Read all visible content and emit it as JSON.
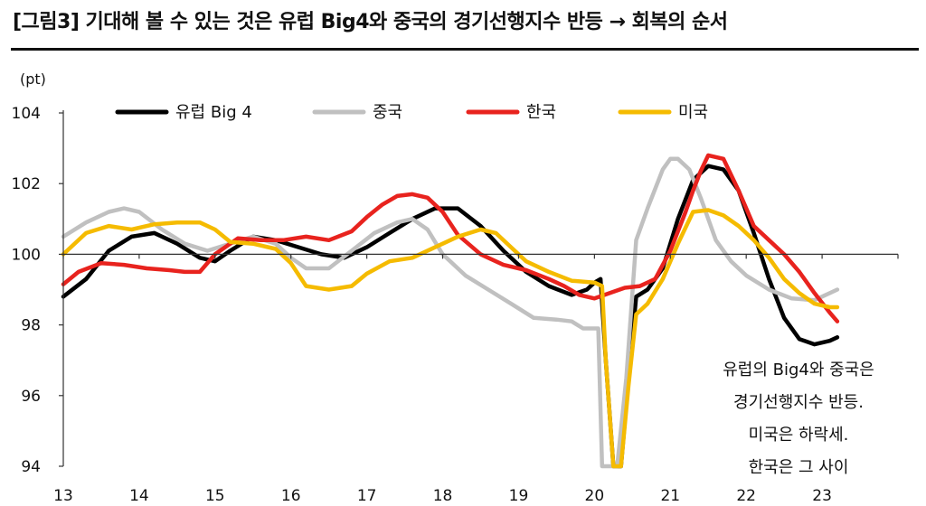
{
  "header": {
    "title": "[그림3] 기대해 볼 수 있는 것은 유럽 Big4와 중국의 경기선행지수 반등 → 회복의 순서"
  },
  "annotation": {
    "lines": [
      "유럽의 Big4와 중국은",
      "경기선행지수 반등.",
      "미국은 하락세.",
      "한국은 그 사이"
    ]
  },
  "chart_data": {
    "type": "line",
    "ylabel": "(pt)",
    "ylim": [
      94,
      104
    ],
    "xlim": [
      13,
      24
    ],
    "yticks": [
      94,
      96,
      98,
      100,
      102,
      104
    ],
    "xticks": [
      "13",
      "14",
      "15",
      "16",
      "17",
      "18",
      "19",
      "20",
      "21",
      "22",
      "23"
    ],
    "grid": false,
    "legend_position": "top",
    "series": [
      {
        "name": "유럽 Big 4",
        "color": "#000000",
        "x": [
          13,
          13.3,
          13.6,
          13.9,
          14.2,
          14.5,
          14.8,
          15.0,
          15.2,
          15.5,
          15.8,
          16.1,
          16.4,
          16.7,
          17.0,
          17.3,
          17.6,
          17.9,
          18.2,
          18.5,
          18.8,
          19.1,
          19.4,
          19.7,
          19.9,
          20.0,
          20.08,
          20.15,
          20.25,
          20.35,
          20.45,
          20.55,
          20.7,
          20.9,
          21.1,
          21.3,
          21.5,
          21.7,
          21.9,
          22.1,
          22.3,
          22.5,
          22.7,
          22.9,
          23.1,
          23.2
        ],
        "values": [
          98.8,
          99.3,
          100.1,
          100.5,
          100.6,
          100.3,
          99.9,
          99.8,
          100.1,
          100.5,
          100.4,
          100.2,
          100.0,
          99.9,
          100.2,
          100.6,
          101.0,
          101.3,
          101.3,
          100.8,
          100.1,
          99.5,
          99.1,
          98.85,
          99.0,
          99.2,
          99.3,
          97.0,
          93.5,
          93.5,
          96.5,
          98.8,
          99.0,
          99.6,
          101.0,
          102.1,
          102.5,
          102.4,
          101.8,
          100.6,
          99.3,
          98.2,
          97.6,
          97.45,
          97.55,
          97.65
        ]
      },
      {
        "name": "중국",
        "color": "#c0c0c0",
        "x": [
          13,
          13.3,
          13.6,
          13.8,
          14.0,
          14.3,
          14.6,
          14.9,
          15.2,
          15.5,
          15.8,
          16.0,
          16.2,
          16.5,
          16.8,
          17.1,
          17.4,
          17.6,
          17.8,
          18.0,
          18.3,
          18.6,
          18.9,
          19.2,
          19.5,
          19.7,
          19.85,
          20.0,
          20.05,
          20.1,
          20.2,
          20.3,
          20.42,
          20.55,
          20.7,
          20.9,
          21.0,
          21.1,
          21.25,
          21.4,
          21.6,
          21.8,
          22.0,
          22.3,
          22.6,
          22.9,
          23.2
        ],
        "values": [
          100.5,
          100.9,
          101.2,
          101.3,
          101.2,
          100.7,
          100.3,
          100.1,
          100.3,
          100.5,
          100.3,
          99.9,
          99.6,
          99.6,
          100.1,
          100.6,
          100.9,
          101.0,
          100.7,
          100.0,
          99.4,
          99.0,
          98.6,
          98.2,
          98.15,
          98.1,
          97.9,
          97.9,
          97.9,
          93.5,
          93.5,
          93.5,
          96.5,
          100.4,
          101.3,
          102.4,
          102.7,
          102.7,
          102.4,
          101.6,
          100.4,
          99.8,
          99.4,
          99.0,
          98.75,
          98.7,
          99.0
        ]
      },
      {
        "name": "한국",
        "color": "#e8231e",
        "x": [
          13,
          13.2,
          13.5,
          13.8,
          14.1,
          14.4,
          14.6,
          14.8,
          15.0,
          15.3,
          15.6,
          15.9,
          16.2,
          16.5,
          16.8,
          17.0,
          17.2,
          17.4,
          17.6,
          17.8,
          18.0,
          18.2,
          18.5,
          18.8,
          19.1,
          19.4,
          19.6,
          19.8,
          20.0,
          20.2,
          20.4,
          20.6,
          20.8,
          21.0,
          21.2,
          21.3,
          21.4,
          21.5,
          21.7,
          21.9,
          22.1,
          22.3,
          22.5,
          22.7,
          22.9,
          23.1,
          23.2
        ],
        "values": [
          99.15,
          99.5,
          99.75,
          99.7,
          99.6,
          99.55,
          99.5,
          99.5,
          100.0,
          100.45,
          100.4,
          100.4,
          100.5,
          100.4,
          100.65,
          101.05,
          101.4,
          101.65,
          101.7,
          101.6,
          101.2,
          100.55,
          100.0,
          99.7,
          99.55,
          99.3,
          99.1,
          98.85,
          98.75,
          98.9,
          99.05,
          99.1,
          99.3,
          100.1,
          101.2,
          101.8,
          102.35,
          102.8,
          102.7,
          101.8,
          100.8,
          100.4,
          100.0,
          99.5,
          98.9,
          98.35,
          98.1
        ]
      },
      {
        "name": "미국",
        "color": "#f5bb00",
        "x": [
          13,
          13.3,
          13.6,
          13.9,
          14.2,
          14.5,
          14.8,
          15.0,
          15.2,
          15.5,
          15.8,
          16.0,
          16.2,
          16.5,
          16.8,
          17.0,
          17.3,
          17.6,
          17.9,
          18.2,
          18.5,
          18.7,
          18.9,
          19.1,
          19.4,
          19.7,
          20.0,
          20.1,
          20.15,
          20.25,
          20.35,
          20.45,
          20.55,
          20.7,
          20.9,
          21.1,
          21.3,
          21.5,
          21.7,
          21.9,
          22.1,
          22.3,
          22.5,
          22.7,
          22.9,
          23.1,
          23.2
        ],
        "values": [
          100.0,
          100.6,
          100.8,
          100.7,
          100.85,
          100.9,
          100.9,
          100.7,
          100.35,
          100.3,
          100.15,
          99.75,
          99.1,
          99.0,
          99.1,
          99.45,
          99.8,
          99.9,
          100.2,
          100.5,
          100.7,
          100.6,
          100.2,
          99.8,
          99.5,
          99.25,
          99.2,
          99.1,
          97.0,
          93.5,
          93.5,
          96.3,
          98.3,
          98.6,
          99.3,
          100.3,
          101.2,
          101.25,
          101.1,
          100.8,
          100.4,
          99.9,
          99.3,
          98.9,
          98.6,
          98.5,
          98.5
        ]
      }
    ]
  }
}
